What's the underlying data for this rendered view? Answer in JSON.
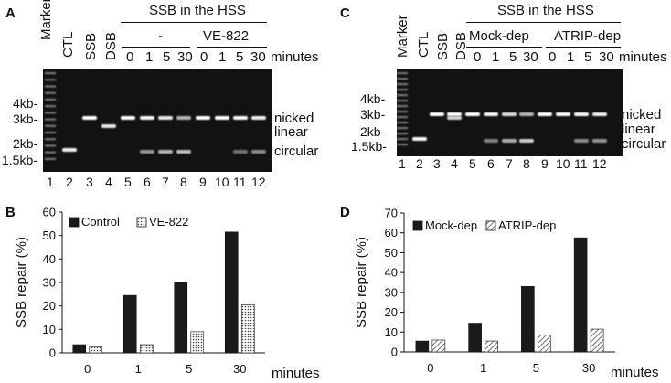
{
  "panels": {
    "A": {
      "label": "A",
      "header": "SSB in the HSS",
      "group_left": "-",
      "group_right": "VE-822",
      "lane_titles": [
        "Marker",
        "CTL",
        "SSB",
        "DSB"
      ],
      "time_labels": [
        "0",
        "1",
        "5",
        "30",
        "0",
        "1",
        "5",
        "30"
      ],
      "time_unit": "minutes",
      "size_markers": [
        "4kb-",
        "3kb-",
        "2kb-",
        "1.5kb-"
      ],
      "band_labels": [
        "nicked",
        "linear",
        "circular"
      ],
      "lane_numbers": [
        "1",
        "2",
        "3",
        "4",
        "5",
        "6",
        "7",
        "8",
        "9",
        "10",
        "11",
        "12"
      ]
    },
    "C": {
      "label": "C",
      "header": "SSB in the HSS",
      "group_left": "Mock-dep",
      "group_right": "ATRIP-dep",
      "lane_titles": [
        "Marker",
        "CTL",
        "SSB",
        "DSB"
      ],
      "time_labels": [
        "0",
        "1",
        "5",
        "30",
        "0",
        "1",
        "5",
        "30"
      ],
      "time_unit": "minutes",
      "size_markers": [
        "4kb-",
        "3kb-",
        "2kb-",
        "1.5kb-"
      ],
      "band_labels": [
        "nicked",
        "linear",
        "circular"
      ],
      "lane_numbers": [
        "1",
        "2",
        "3",
        "4",
        "5",
        "6",
        "7",
        "8",
        "9",
        "10",
        "11",
        "12"
      ]
    },
    "B": {
      "label": "B"
    },
    "D": {
      "label": "D"
    }
  },
  "chart_data": [
    {
      "type": "bar",
      "panel": "B",
      "categories": [
        "0",
        "1",
        "5",
        "30"
      ],
      "series": [
        {
          "name": "Control",
          "values": [
            3.5,
            24.5,
            30,
            51.5
          ],
          "color": "#1a1a1a"
        },
        {
          "name": "VE-822",
          "values": [
            2.5,
            3.5,
            9,
            20.5
          ],
          "color": "#ffffff",
          "pattern": "dots"
        }
      ],
      "title": "",
      "xlabel": "minutes",
      "ylabel": "SSB repair (%)",
      "ylim": [
        0,
        60
      ],
      "yticks": [
        "0",
        "10",
        "20",
        "30",
        "40",
        "50",
        "60"
      ],
      "legend": "top-left",
      "grid": false
    },
    {
      "type": "bar",
      "panel": "D",
      "categories": [
        "0",
        "1",
        "5",
        "30"
      ],
      "series": [
        {
          "name": "Mock-dep",
          "values": [
            5.5,
            14.5,
            33,
            57.5
          ],
          "color": "#1a1a1a"
        },
        {
          "name": "ATRIP-dep",
          "values": [
            6,
            5.5,
            8.5,
            11.5
          ],
          "color": "#ffffff",
          "pattern": "hatch"
        }
      ],
      "title": "",
      "xlabel": "minutes",
      "ylabel": "SSB repair (%)",
      "ylim": [
        0,
        70
      ],
      "yticks": [
        "0",
        "10",
        "20",
        "30",
        "40",
        "50",
        "60",
        "70"
      ],
      "legend": "top-left",
      "grid": false
    }
  ]
}
